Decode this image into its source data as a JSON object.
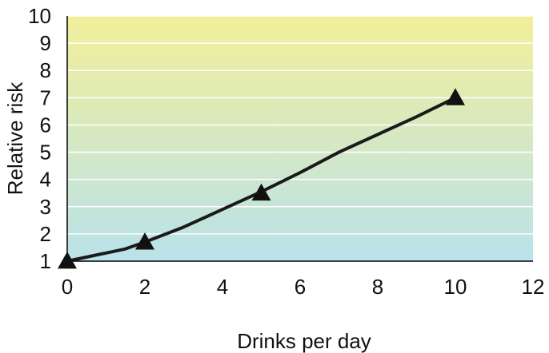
{
  "chart_data": {
    "type": "line",
    "title": "",
    "xlabel": "Drinks per day",
    "ylabel": "Relative risk",
    "xlim": [
      0,
      12
    ],
    "ylim": [
      1,
      10
    ],
    "x_ticks": [
      0,
      2,
      4,
      6,
      8,
      10,
      12
    ],
    "y_ticks": [
      1,
      2,
      3,
      4,
      5,
      6,
      7,
      8,
      9,
      10
    ],
    "grid": "horizontal",
    "legend": "none",
    "background_gradient": {
      "top": "#f3ef9a",
      "bottom": "#b9e2ea"
    },
    "colors": {
      "line": "#1a1a1a",
      "marker": "#111111",
      "grid": "#ffffff",
      "axis": "#000000"
    },
    "series": [
      {
        "curve": {
          "x": [
            0,
            0.5,
            1,
            1.5,
            2,
            3,
            4,
            5,
            6,
            7,
            8,
            9,
            10
          ],
          "y": [
            1.0,
            1.15,
            1.3,
            1.45,
            1.7,
            2.25,
            2.9,
            3.55,
            4.25,
            5.0,
            5.65,
            6.3,
            7.0
          ]
        },
        "markers": {
          "shape": "triangle",
          "x": [
            0,
            2,
            5,
            10
          ],
          "y": [
            1.0,
            1.7,
            3.5,
            7.0
          ]
        }
      }
    ]
  }
}
